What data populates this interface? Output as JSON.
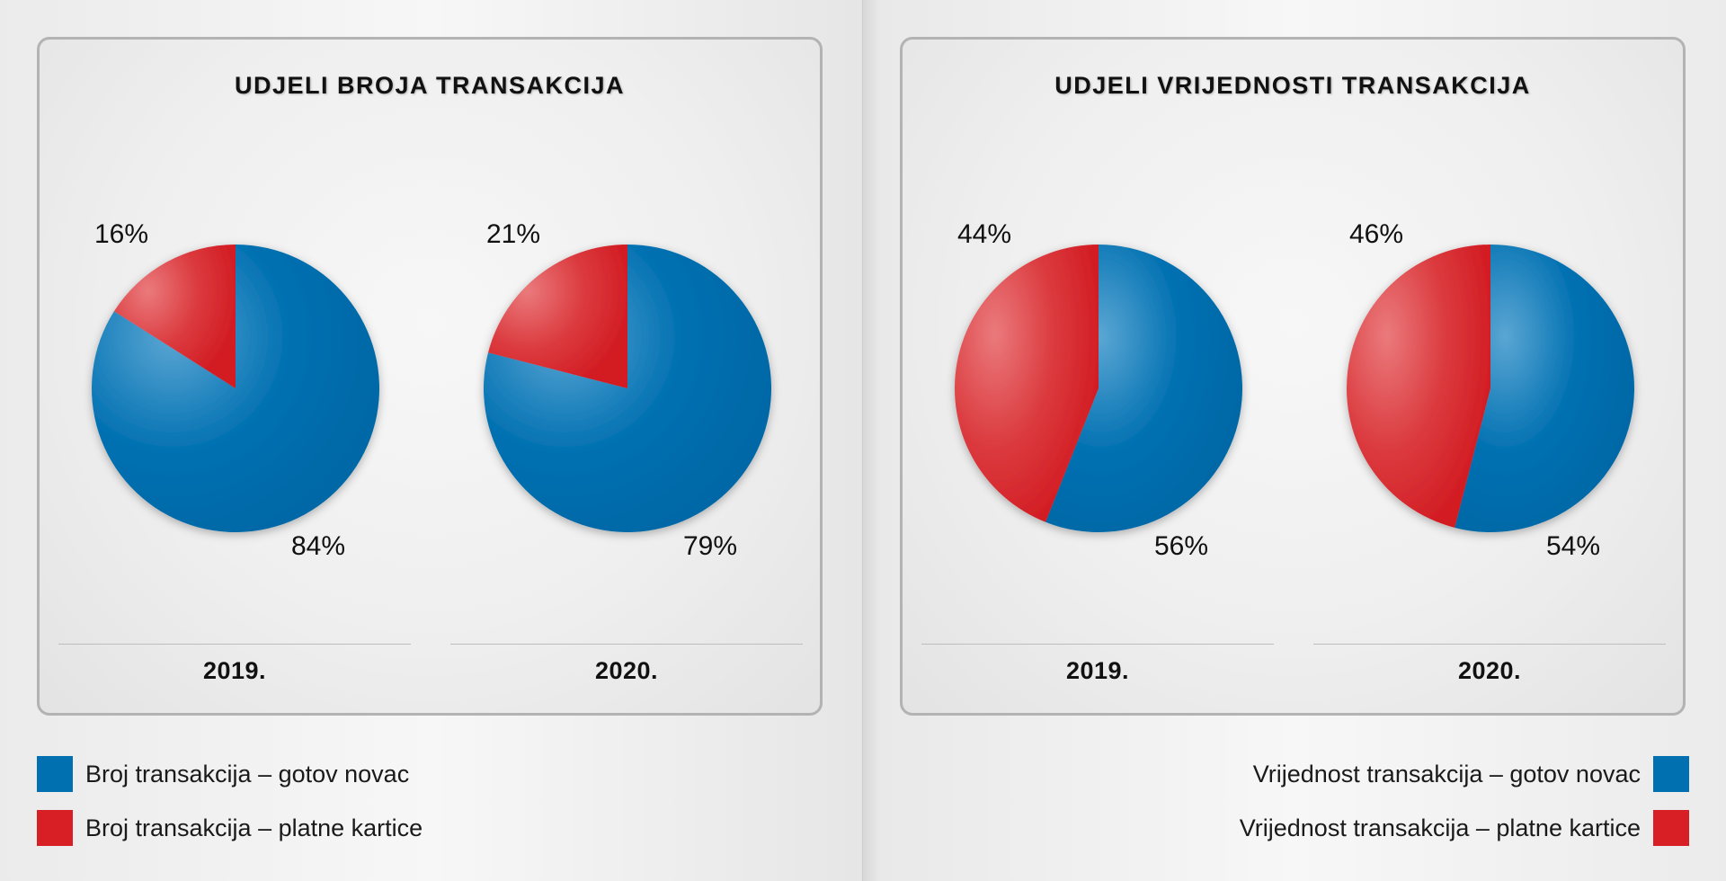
{
  "colors": {
    "cash": "#0070b1",
    "cards": "#d81f26"
  },
  "chart_data": [
    {
      "type": "pie",
      "title": "UDJELI BROJA TRANSAKCIJA",
      "pies": [
        {
          "label": "2019.",
          "slices": [
            {
              "name": "Broj transakcija – gotov novac",
              "value": 84,
              "label": "84%"
            },
            {
              "name": "Broj transakcija – platne kartice",
              "value": 16,
              "label": "16%"
            }
          ]
        },
        {
          "label": "2020.",
          "slices": [
            {
              "name": "Broj transakcija – gotov novac",
              "value": 79,
              "label": "79%"
            },
            {
              "name": "Broj transakcija – platne kartice",
              "value": 21,
              "label": "21%"
            }
          ]
        }
      ],
      "legend": [
        "Broj transakcija – gotov novac",
        "Broj transakcija – platne kartice"
      ],
      "legend_placement": "bottom-left"
    },
    {
      "type": "pie",
      "title": "UDJELI VRIJEDNOSTI TRANSAKCIJA",
      "pies": [
        {
          "label": "2019.",
          "slices": [
            {
              "name": "Vrijednost transakcija – gotov novac",
              "value": 56,
              "label": "56%"
            },
            {
              "name": "Vrijednost transakcija – platne kartice",
              "value": 44,
              "label": "44%"
            }
          ]
        },
        {
          "label": "2020.",
          "slices": [
            {
              "name": "Vrijednost transakcija – gotov novac",
              "value": 54,
              "label": "54%"
            },
            {
              "name": "Vrijednost transakcija – platne kartice",
              "value": 46,
              "label": "46%"
            }
          ]
        }
      ],
      "legend": [
        "Vrijednost transakcija – gotov novac",
        "Vrijednost transakcija – platne kartice"
      ],
      "legend_placement": "bottom-right"
    }
  ]
}
